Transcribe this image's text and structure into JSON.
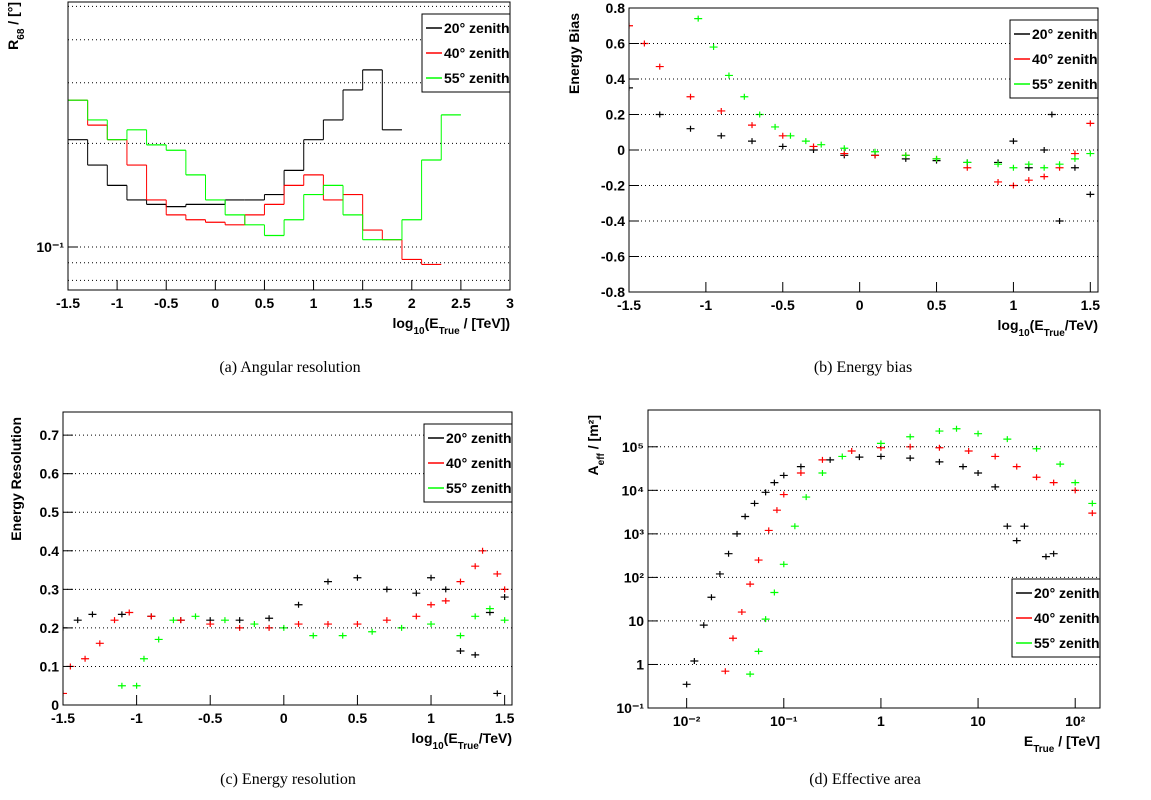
{
  "chart_data": [
    {
      "type": "step",
      "caption": "(a) Angular resolution",
      "x_label": [
        "log",
        "10",
        "(E",
        "True",
        " / [TeV])"
      ],
      "y_label": [
        "R",
        "68",
        " / [°]"
      ],
      "xlim": [
        -1.5,
        3
      ],
      "ylim": [
        0.075,
        0.515
      ],
      "log_y": true,
      "xticks": [
        -1.5,
        -1,
        -0.5,
        0,
        0.5,
        1,
        1.5,
        2,
        2.5,
        3
      ],
      "yticks": [
        {
          "value": 0.1,
          "label": "10⁻¹"
        }
      ],
      "yminor": [
        0.08,
        0.09,
        0.2,
        0.3,
        0.4,
        0.5
      ],
      "grid_y": true,
      "legend": "top-right",
      "series": [
        {
          "name": "20° zenith",
          "color": "#000000",
          "x": [
            -1.4,
            -1.2,
            -1.0,
            -0.8,
            -0.6,
            -0.4,
            -0.2,
            0,
            0.2,
            0.4,
            0.6,
            0.8,
            1.0,
            1.2,
            1.4,
            1.6,
            1.8
          ],
          "values": [
            0.205,
            0.173,
            0.151,
            0.137,
            0.133,
            0.131,
            0.133,
            0.133,
            0.137,
            0.137,
            0.142,
            0.167,
            0.205,
            0.234,
            0.286,
            0.327,
            0.219
          ]
        },
        {
          "name": "40° zenith",
          "color": "#ff0000",
          "x": [
            -1.4,
            -1.2,
            -1.0,
            -0.8,
            -0.6,
            -0.4,
            -0.2,
            0,
            0.2,
            0.4,
            0.6,
            0.8,
            1.0,
            1.2,
            1.4,
            1.6,
            1.8,
            2.0,
            2.2
          ],
          "values": [
            0.267,
            0.226,
            0.205,
            0.173,
            0.137,
            0.124,
            0.12,
            0.118,
            0.116,
            0.124,
            0.133,
            0.151,
            0.162,
            0.137,
            0.142,
            0.112,
            0.105,
            0.092,
            0.089
          ]
        },
        {
          "name": "55° zenith",
          "color": "#00ff00",
          "x": [
            -1.4,
            -1.2,
            -1.0,
            -0.8,
            -0.6,
            -0.4,
            -0.2,
            0,
            0.2,
            0.4,
            0.6,
            0.8,
            1.0,
            1.2,
            1.4,
            1.6,
            1.8,
            2.0,
            2.2,
            2.4
          ],
          "values": [
            0.267,
            0.234,
            0.205,
            0.219,
            0.198,
            0.191,
            0.162,
            0.137,
            0.124,
            0.116,
            0.108,
            0.12,
            0.142,
            0.151,
            0.124,
            0.105,
            0.105,
            0.12,
            0.179,
            0.242
          ]
        }
      ]
    },
    {
      "type": "scatter",
      "caption": "(b) Energy bias",
      "x_label": [
        "log",
        "10",
        "(E",
        "True",
        "/TeV)"
      ],
      "y_label": [
        "Energy Bias"
      ],
      "xlim": [
        -1.5,
        1.55
      ],
      "ylim": [
        -0.8,
        0.8
      ],
      "xticks": [
        -1.5,
        -1,
        -0.5,
        0,
        0.5,
        1,
        1.5
      ],
      "yticks": [
        -0.8,
        -0.6,
        -0.4,
        -0.2,
        0,
        0.2,
        0.4,
        0.6,
        0.8
      ],
      "grid_y": true,
      "legend": "top-right",
      "series": [
        {
          "name": "20° zenith",
          "color": "#000000",
          "x": [
            -1.5,
            -1.3,
            -1.1,
            -0.9,
            -0.7,
            -0.5,
            -0.3,
            -0.1,
            0.1,
            0.3,
            0.5,
            0.7,
            0.9,
            1.0,
            1.1,
            1.2,
            1.25,
            1.3,
            1.4,
            1.5
          ],
          "values": [
            0.35,
            0.2,
            0.12,
            0.08,
            0.05,
            0.02,
            0,
            -0.03,
            -0.03,
            -0.05,
            -0.06,
            -0.07,
            -0.07,
            0.05,
            -0.1,
            0,
            0.2,
            -0.4,
            -0.1,
            -0.25
          ]
        },
        {
          "name": "40° zenith",
          "color": "#ff0000",
          "x": [
            -1.5,
            -1.4,
            -1.3,
            -1.1,
            -0.9,
            -0.7,
            -0.5,
            -0.3,
            -0.1,
            0.1,
            0.3,
            0.5,
            0.7,
            0.9,
            1.0,
            1.1,
            1.2,
            1.3,
            1.4,
            1.5
          ],
          "values": [
            0.7,
            0.6,
            0.47,
            0.3,
            0.22,
            0.14,
            0.08,
            0.02,
            -0.02,
            -0.03,
            -0.03,
            -0.05,
            -0.1,
            -0.18,
            -0.2,
            -0.17,
            -0.15,
            -0.1,
            -0.02,
            0.15
          ]
        },
        {
          "name": "55° zenith",
          "color": "#00ff00",
          "x": [
            -1.05,
            -0.95,
            -0.85,
            -0.75,
            -0.65,
            -0.55,
            -0.45,
            -0.35,
            -0.25,
            -0.1,
            0.1,
            0.3,
            0.5,
            0.7,
            0.9,
            1.0,
            1.1,
            1.2,
            1.3,
            1.4,
            1.5
          ],
          "values": [
            0.74,
            0.58,
            0.42,
            0.3,
            0.2,
            0.13,
            0.08,
            0.05,
            0.03,
            0.01,
            -0.01,
            -0.03,
            -0.05,
            -0.07,
            -0.08,
            -0.1,
            -0.08,
            -0.1,
            -0.08,
            -0.05,
            -0.02
          ]
        }
      ]
    },
    {
      "type": "scatter",
      "caption": "(c) Energy resolution",
      "x_label": [
        "log",
        "10",
        "(E",
        "True",
        "/TeV)"
      ],
      "y_label": [
        "Energy Resolution"
      ],
      "xlim": [
        -1.5,
        1.55
      ],
      "ylim": [
        0,
        0.76
      ],
      "xticks": [
        -1.5,
        -1,
        -0.5,
        0,
        0.5,
        1,
        1.5
      ],
      "yticks": [
        0,
        0.1,
        0.2,
        0.3,
        0.4,
        0.5,
        0.6,
        0.7
      ],
      "grid_y": true,
      "legend": "top-right",
      "series": [
        {
          "name": "20° zenith",
          "color": "#000000",
          "x": [
            -1.5,
            -1.4,
            -1.3,
            -1.1,
            -0.9,
            -0.7,
            -0.5,
            -0.3,
            -0.1,
            0.1,
            0.3,
            0.5,
            0.7,
            0.9,
            1.0,
            1.1,
            1.2,
            1.3,
            1.4,
            1.45,
            1.5
          ],
          "values": [
            0.2,
            0.22,
            0.235,
            0.235,
            0.23,
            0.22,
            0.22,
            0.22,
            0.225,
            0.26,
            0.32,
            0.33,
            0.3,
            0.29,
            0.33,
            0.3,
            0.14,
            0.13,
            0.24,
            0.03,
            0.28
          ]
        },
        {
          "name": "40° zenith",
          "color": "#ff0000",
          "x": [
            -1.5,
            -1.45,
            -1.35,
            -1.25,
            -1.15,
            -1.05,
            -0.9,
            -0.7,
            -0.5,
            -0.3,
            -0.1,
            0.1,
            0.3,
            0.5,
            0.7,
            0.9,
            1.0,
            1.1,
            1.2,
            1.3,
            1.35,
            1.45,
            1.5
          ],
          "values": [
            0.03,
            0.1,
            0.12,
            0.16,
            0.22,
            0.24,
            0.23,
            0.22,
            0.21,
            0.2,
            0.2,
            0.21,
            0.21,
            0.21,
            0.22,
            0.23,
            0.26,
            0.27,
            0.32,
            0.36,
            0.4,
            0.34,
            0.3
          ]
        },
        {
          "name": "55° zenith",
          "color": "#00ff00",
          "x": [
            -1.1,
            -1.0,
            -0.95,
            -0.85,
            -0.75,
            -0.6,
            -0.4,
            -0.2,
            0,
            0.2,
            0.4,
            0.6,
            0.8,
            1.0,
            1.2,
            1.3,
            1.4,
            1.5
          ],
          "values": [
            0.05,
            0.05,
            0.12,
            0.17,
            0.22,
            0.23,
            0.22,
            0.21,
            0.2,
            0.18,
            0.18,
            0.19,
            0.2,
            0.21,
            0.18,
            0.23,
            0.25,
            0.22
          ]
        }
      ]
    },
    {
      "type": "scatter",
      "caption": "(d) Effective area",
      "x_label": [
        "E",
        "True",
        " / [TeV]"
      ],
      "y_label": [
        "A",
        "eff",
        " / [m²]"
      ],
      "xlim": [
        0.004,
        180
      ],
      "ylim": [
        0.1,
        700000
      ],
      "log_x": true,
      "log_y": true,
      "xticks": [
        {
          "value": 0.01,
          "label": "10⁻²"
        },
        {
          "value": 0.1,
          "label": "10⁻¹"
        },
        1,
        10,
        {
          "value": 100,
          "label": "10²"
        }
      ],
      "yticks": [
        {
          "value": 0.1,
          "label": "10⁻¹"
        },
        1,
        10,
        {
          "value": 100,
          "label": "10²"
        },
        {
          "value": 1000,
          "label": "10³"
        },
        {
          "value": 10000,
          "label": "10⁴"
        },
        {
          "value": 100000,
          "label": "10⁵"
        }
      ],
      "grid_y": true,
      "legend": "center-right",
      "series": [
        {
          "name": "20° zenith",
          "color": "#000000",
          "x": [
            0.01,
            0.012,
            0.015,
            0.018,
            0.022,
            0.027,
            0.033,
            0.04,
            0.05,
            0.065,
            0.08,
            0.1,
            0.15,
            0.3,
            0.6,
            1,
            2,
            4,
            7,
            10,
            15,
            20,
            25,
            30,
            50,
            60
          ],
          "values": [
            0.35,
            1.2,
            8,
            35,
            120,
            350,
            1000,
            2500,
            5000,
            9000,
            15000,
            22000,
            35000,
            50000,
            58000,
            60000,
            55000,
            45000,
            35000,
            25000,
            12000,
            1500,
            700,
            1500,
            300,
            350
          ]
        },
        {
          "name": "40° zenith",
          "color": "#ff0000",
          "x": [
            0.025,
            0.03,
            0.037,
            0.045,
            0.055,
            0.07,
            0.085,
            0.1,
            0.15,
            0.25,
            0.5,
            1,
            2,
            4,
            8,
            15,
            25,
            40,
            60,
            100,
            150
          ],
          "values": [
            0.7,
            4,
            16,
            70,
            250,
            1200,
            3500,
            8000,
            25000,
            50000,
            80000,
            95000,
            100000,
            95000,
            80000,
            60000,
            35000,
            20000,
            15000,
            10000,
            3000
          ]
        },
        {
          "name": "55° zenith",
          "color": "#00ff00",
          "x": [
            0.045,
            0.055,
            0.065,
            0.08,
            0.1,
            0.13,
            0.17,
            0.25,
            0.4,
            1,
            2,
            4,
            6,
            10,
            20,
            40,
            70,
            100,
            150
          ],
          "values": [
            0.6,
            2,
            11,
            45,
            200,
            1500,
            7000,
            25000,
            60000,
            120000,
            170000,
            230000,
            260000,
            200000,
            150000,
            90000,
            40000,
            15000,
            5000
          ]
        }
      ]
    }
  ]
}
